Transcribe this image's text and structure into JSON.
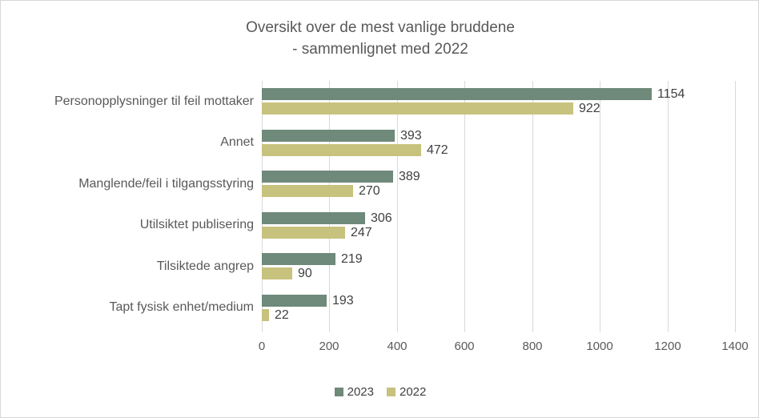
{
  "title": {
    "line1": "Oversikt over de mest vanlige bruddene",
    "line2": "- sammenlignet med 2022"
  },
  "colors": {
    "series_2023": "#6F897A",
    "series_2022": "#C7C27D",
    "gridline": "#D9D9D9",
    "title_text": "#595959",
    "axis_text": "#595959",
    "value_text": "#404040",
    "frame_border": "#D7D7D7"
  },
  "chart_data": {
    "type": "bar",
    "orientation": "horizontal",
    "title": "Oversikt over de mest vanlige bruddene - sammenlignet med 2022",
    "categories": [
      "Personopplysninger til feil mottaker",
      "Annet",
      "Manglende/feil i tilgangsstyring",
      "Utilsiktet publisering",
      "Tilsiktede angrep",
      "Tapt fysisk enhet/medium"
    ],
    "series": [
      {
        "name": "2023",
        "color": "#6F897A",
        "values": [
          1154,
          393,
          389,
          306,
          219,
          193
        ]
      },
      {
        "name": "2022",
        "color": "#C7C27D",
        "values": [
          922,
          472,
          270,
          247,
          90,
          22
        ]
      }
    ],
    "xlim": [
      0,
      1400
    ],
    "xticks": [
      0,
      200,
      400,
      600,
      800,
      1000,
      1200,
      1400
    ],
    "grid": true,
    "data_labels": true,
    "legend_position": "bottom",
    "xlabel": "",
    "ylabel": ""
  }
}
